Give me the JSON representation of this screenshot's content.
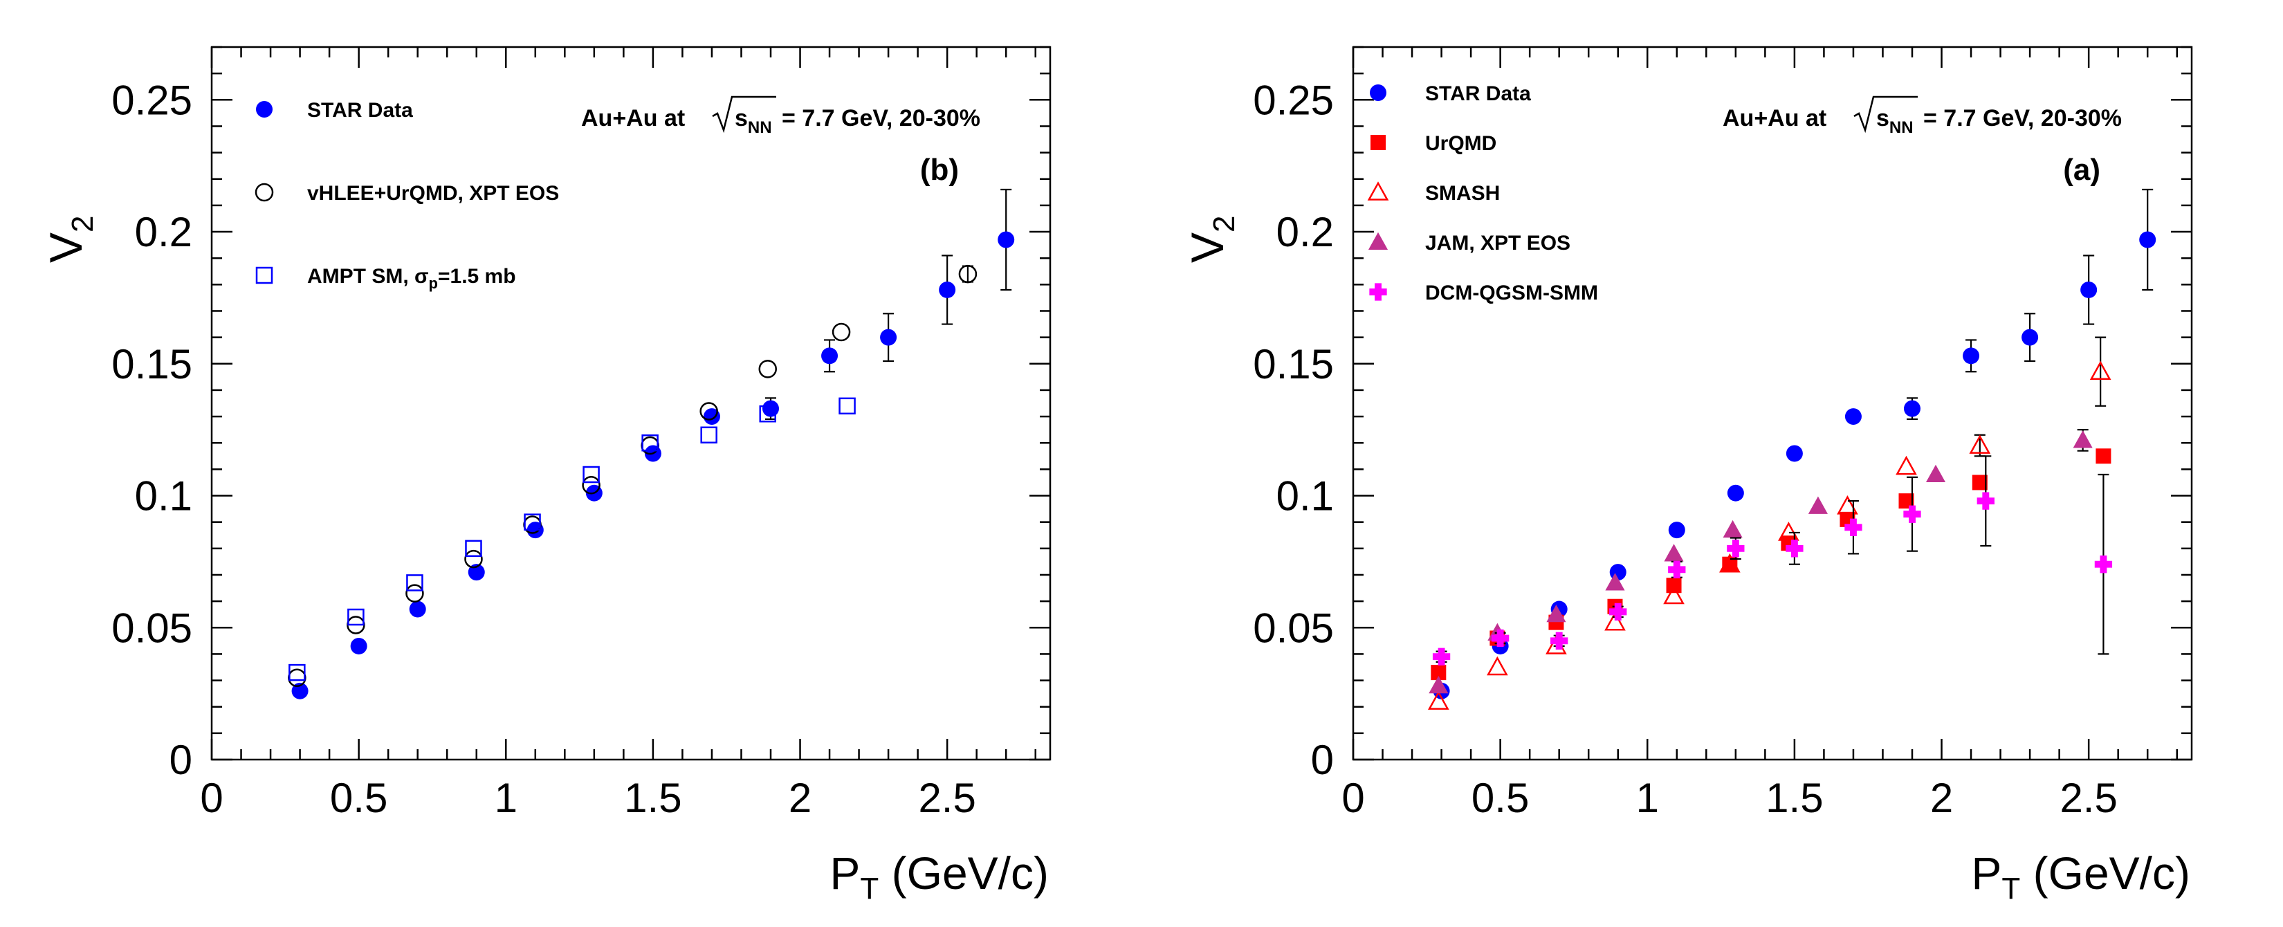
{
  "chart_data": [
    {
      "id": "b",
      "type": "scatter",
      "panel_label": "(b)",
      "annotation": {
        "prefix": "Au+Au at",
        "root": "s",
        "root_sub": "NN",
        "suffix": "= 7.7  GeV, 20-30%"
      },
      "xlabel": {
        "main": "P",
        "sub": "T",
        "rest": " (GeV/c)"
      },
      "ylabel": {
        "main": "V",
        "sub": "2"
      },
      "xlim": [
        0,
        2.85
      ],
      "ylim": [
        0,
        0.27
      ],
      "xticks": [
        {
          "v": 0,
          "label": "0"
        },
        {
          "v": 0.5,
          "label": "0.5"
        },
        {
          "v": 1,
          "label": "1"
        },
        {
          "v": 1.5,
          "label": "1.5"
        },
        {
          "v": 2,
          "label": "2"
        },
        {
          "v": 2.5,
          "label": "2.5"
        }
      ],
      "yticks": [
        {
          "v": 0,
          "label": "0"
        },
        {
          "v": 0.05,
          "label": "0.05"
        },
        {
          "v": 0.1,
          "label": "0.1"
        },
        {
          "v": 0.15,
          "label": "0.15"
        },
        {
          "v": 0.2,
          "label": "0.2"
        },
        {
          "v": 0.25,
          "label": "0.25"
        }
      ],
      "legend_position": "top-left",
      "series": [
        {
          "name": "STAR Data",
          "label_main": "STAR Data",
          "label_sub": "",
          "label_tail": "",
          "marker": "circle-filled",
          "color": "#0000ff",
          "x": [
            0.3,
            0.5,
            0.7,
            0.9,
            1.1,
            1.3,
            1.5,
            1.7,
            1.9,
            2.1,
            2.3,
            2.5,
            2.7
          ],
          "y": [
            0.026,
            0.043,
            0.057,
            0.071,
            0.087,
            0.101,
            0.116,
            0.13,
            0.133,
            0.153,
            0.16,
            0.178,
            0.197
          ],
          "err": [
            0.002,
            0.002,
            0.002,
            0.002,
            0.002,
            0.002,
            0.002,
            0.002,
            0.004,
            0.006,
            0.009,
            0.013,
            0.019
          ]
        },
        {
          "name": "vHLEE+UrQMD, XPT EOS",
          "label_main": "vHLEE+UrQMD, XPT EOS",
          "label_sub": "",
          "label_tail": "",
          "marker": "circle-open",
          "color": "#000000",
          "x": [
            0.29,
            0.49,
            0.69,
            0.89,
            1.09,
            1.29,
            1.49,
            1.69,
            1.89,
            2.14,
            2.57
          ],
          "y": [
            0.031,
            0.051,
            0.063,
            0.076,
            0.089,
            0.104,
            0.119,
            0.132,
            0.148,
            0.162,
            0.184
          ],
          "err": [
            0,
            0,
            0,
            0,
            0,
            0,
            0,
            0,
            0,
            0,
            0.003
          ]
        },
        {
          "name": "AMPT SM, σp=1.5 mb",
          "label_main": "AMPT SM, σ",
          "label_sub": "p",
          "label_tail": "=1.5 mb",
          "marker": "square-open",
          "color": "#0000ff",
          "x": [
            0.29,
            0.49,
            0.69,
            0.89,
            1.09,
            1.29,
            1.49,
            1.69,
            1.89,
            2.16
          ],
          "y": [
            0.033,
            0.054,
            0.067,
            0.08,
            0.09,
            0.108,
            0.12,
            0.123,
            0.131,
            0.134
          ],
          "err": [
            0,
            0,
            0,
            0,
            0,
            0,
            0,
            0,
            0,
            0
          ]
        }
      ]
    },
    {
      "id": "a",
      "type": "scatter",
      "panel_label": "(a)",
      "annotation": {
        "prefix": "Au+Au at",
        "root": "s",
        "root_sub": "NN",
        "suffix": "= 7.7  GeV, 20-30%"
      },
      "xlabel": {
        "main": "P",
        "sub": "T",
        "rest": " (GeV/c)"
      },
      "ylabel": {
        "main": "V",
        "sub": "2"
      },
      "xlim": [
        0,
        2.85
      ],
      "ylim": [
        0,
        0.27
      ],
      "xticks": [
        {
          "v": 0,
          "label": "0"
        },
        {
          "v": 0.5,
          "label": "0.5"
        },
        {
          "v": 1,
          "label": "1"
        },
        {
          "v": 1.5,
          "label": "1.5"
        },
        {
          "v": 2,
          "label": "2"
        },
        {
          "v": 2.5,
          "label": "2.5"
        }
      ],
      "yticks": [
        {
          "v": 0,
          "label": "0"
        },
        {
          "v": 0.05,
          "label": "0.05"
        },
        {
          "v": 0.1,
          "label": "0.1"
        },
        {
          "v": 0.15,
          "label": "0.15"
        },
        {
          "v": 0.2,
          "label": "0.2"
        },
        {
          "v": 0.25,
          "label": "0.25"
        }
      ],
      "legend_position": "top-left",
      "series": [
        {
          "name": "STAR Data",
          "label_main": "STAR Data",
          "label_sub": "",
          "label_tail": "",
          "marker": "circle-filled",
          "color": "#0000ff",
          "x": [
            0.3,
            0.5,
            0.7,
            0.9,
            1.1,
            1.3,
            1.5,
            1.7,
            1.9,
            2.1,
            2.3,
            2.5,
            2.7
          ],
          "y": [
            0.026,
            0.043,
            0.057,
            0.071,
            0.087,
            0.101,
            0.116,
            0.13,
            0.133,
            0.153,
            0.16,
            0.178,
            0.197
          ],
          "err": [
            0.002,
            0.002,
            0.002,
            0.002,
            0.002,
            0.002,
            0.002,
            0.002,
            0.004,
            0.006,
            0.009,
            0.013,
            0.019
          ]
        },
        {
          "name": "UrQMD",
          "label_main": "UrQMD",
          "label_sub": "",
          "label_tail": "",
          "marker": "square-filled",
          "color": "#ff0000",
          "x": [
            0.29,
            0.49,
            0.69,
            0.89,
            1.09,
            1.28,
            1.48,
            1.68,
            1.88,
            2.13,
            2.55
          ],
          "y": [
            0.033,
            0.046,
            0.052,
            0.058,
            0.066,
            0.074,
            0.082,
            0.091,
            0.098,
            0.105,
            0.115
          ],
          "err": [
            0,
            0,
            0,
            0,
            0,
            0,
            0,
            0,
            0,
            0,
            0
          ]
        },
        {
          "name": "SMASH",
          "label_main": "SMASH",
          "label_sub": "",
          "label_tail": "",
          "marker": "triangle-open",
          "color": "#ff0000",
          "x": [
            0.29,
            0.49,
            0.69,
            0.89,
            1.09,
            1.28,
            1.48,
            1.68,
            1.88,
            2.13,
            2.54
          ],
          "y": [
            0.022,
            0.035,
            0.043,
            0.052,
            0.062,
            0.074,
            0.086,
            0.096,
            0.111,
            0.119,
            0.147
          ],
          "err": [
            0,
            0,
            0,
            0,
            0,
            0,
            0,
            0,
            0,
            0.004,
            0.013
          ]
        },
        {
          "name": "JAM, XPT EOS",
          "label_main": "JAM, XPT EOS",
          "label_sub": "",
          "label_tail": "",
          "marker": "triangle-filled",
          "color": "#c03090",
          "x": [
            0.29,
            0.49,
            0.69,
            0.89,
            1.09,
            1.29,
            1.58,
            1.98,
            2.48
          ],
          "y": [
            0.028,
            0.048,
            0.055,
            0.067,
            0.078,
            0.087,
            0.096,
            0.108,
            0.121
          ],
          "err": [
            0,
            0,
            0,
            0,
            0,
            0,
            0,
            0,
            0.004
          ]
        },
        {
          "name": "DCM-QGSM-SMM",
          "label_main": "DCM-QGSM-SMM",
          "label_sub": "",
          "label_tail": "",
          "marker": "cross",
          "color": "#ff00ff",
          "x": [
            0.3,
            0.5,
            0.7,
            0.9,
            1.1,
            1.3,
            1.5,
            1.7,
            1.9,
            2.15,
            2.55
          ],
          "y": [
            0.039,
            0.046,
            0.045,
            0.056,
            0.072,
            0.08,
            0.08,
            0.088,
            0.093,
            0.098,
            0.074
          ],
          "err": [
            0.002,
            0.002,
            0.002,
            0.002,
            0.003,
            0.004,
            0.006,
            0.01,
            0.014,
            0.017,
            0.034
          ]
        }
      ]
    }
  ]
}
